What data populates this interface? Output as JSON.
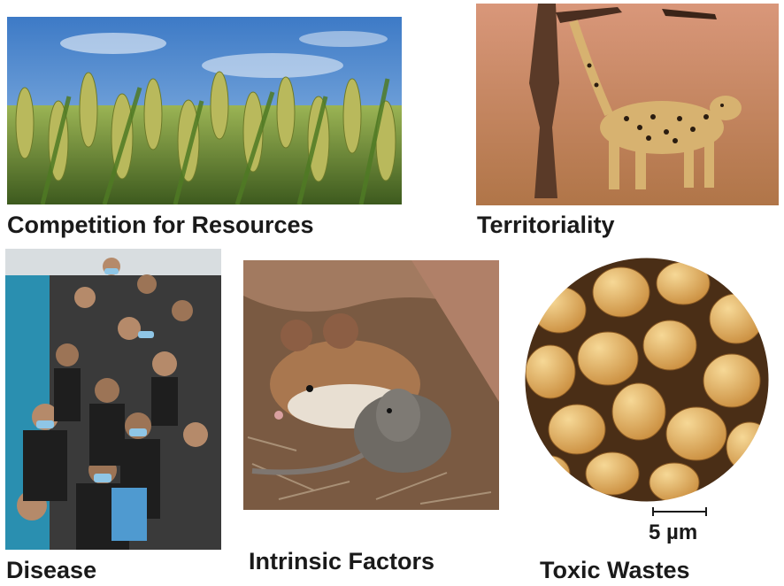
{
  "panels": {
    "wheat": {
      "caption": "Competition for Resources"
    },
    "cheetah": {
      "caption": "Territoriality"
    },
    "crowd": {
      "caption": "Disease"
    },
    "mice": {
      "caption": "Intrinsic Factors"
    },
    "yeast": {
      "caption": "Toxic Wastes",
      "scale_label": "5 µm"
    }
  },
  "colors": {
    "sky": "#5b8fd0",
    "wheat": "#7f9a3a",
    "savanna": "#c98a60",
    "crowd_wall": "#2a8fb0",
    "mouse_fur": "#a9774f",
    "yeast": "#e2b061"
  }
}
